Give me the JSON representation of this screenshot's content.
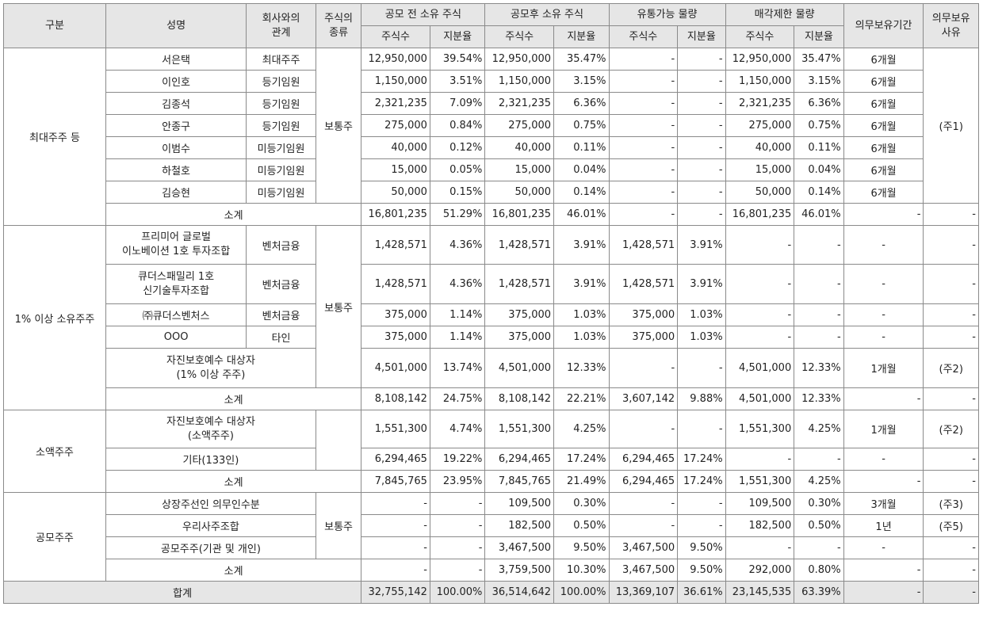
{
  "header": {
    "category": "구분",
    "name": "성명",
    "relation": "회사와의\n관계",
    "stock_type": "주식의\n종류",
    "groups": {
      "pre_ipo": "공모 전 소유 주식",
      "post_ipo": "공모후 소유 주식",
      "tradable": "유통가능 물량",
      "restricted": "매각제한 물량"
    },
    "period": "의무보유기간",
    "reason": "의무보유\n사유",
    "shares": "주식수",
    "ratio": "지분율"
  },
  "sections": [
    {
      "category": "최대주주 등",
      "stock_type": "보통주",
      "reason": "(주1)",
      "rows": [
        {
          "name": "서은택",
          "relation": "최대주주",
          "pre_s": "12,950,000",
          "pre_r": "39.54%",
          "post_s": "12,950,000",
          "post_r": "35.47%",
          "tr_s": "-",
          "tr_r": "-",
          "rs_s": "12,950,000",
          "rs_r": "35.47%",
          "period": "6개월"
        },
        {
          "name": "이인호",
          "relation": "등기임원",
          "pre_s": "1,150,000",
          "pre_r": "3.51%",
          "post_s": "1,150,000",
          "post_r": "3.15%",
          "tr_s": "-",
          "tr_r": "-",
          "rs_s": "1,150,000",
          "rs_r": "3.15%",
          "period": "6개월"
        },
        {
          "name": "김종석",
          "relation": "등기임원",
          "pre_s": "2,321,235",
          "pre_r": "7.09%",
          "post_s": "2,321,235",
          "post_r": "6.36%",
          "tr_s": "-",
          "tr_r": "-",
          "rs_s": "2,321,235",
          "rs_r": "6.36%",
          "period": "6개월"
        },
        {
          "name": "안종구",
          "relation": "등기임원",
          "pre_s": "275,000",
          "pre_r": "0.84%",
          "post_s": "275,000",
          "post_r": "0.75%",
          "tr_s": "-",
          "tr_r": "-",
          "rs_s": "275,000",
          "rs_r": "0.75%",
          "period": "6개월"
        },
        {
          "name": "이범수",
          "relation": "미등기임원",
          "pre_s": "40,000",
          "pre_r": "0.12%",
          "post_s": "40,000",
          "post_r": "0.11%",
          "tr_s": "-",
          "tr_r": "-",
          "rs_s": "40,000",
          "rs_r": "0.11%",
          "period": "6개월"
        },
        {
          "name": "하철호",
          "relation": "미등기임원",
          "pre_s": "15,000",
          "pre_r": "0.05%",
          "post_s": "15,000",
          "post_r": "0.04%",
          "tr_s": "-",
          "tr_r": "-",
          "rs_s": "15,000",
          "rs_r": "0.04%",
          "period": "6개월"
        },
        {
          "name": "김승현",
          "relation": "미등기임원",
          "pre_s": "50,000",
          "pre_r": "0.15%",
          "post_s": "50,000",
          "post_r": "0.14%",
          "tr_s": "-",
          "tr_r": "-",
          "rs_s": "50,000",
          "rs_r": "0.14%",
          "period": "6개월"
        }
      ],
      "subtotal": {
        "label": "소계",
        "pre_s": "16,801,235",
        "pre_r": "51.29%",
        "post_s": "16,801,235",
        "post_r": "46.01%",
        "tr_s": "-",
        "tr_r": "-",
        "rs_s": "16,801,235",
        "rs_r": "46.01%",
        "period": "-",
        "reason": "-"
      }
    },
    {
      "category": "1% 이상 소유주주",
      "stock_type": "보통주",
      "rows": [
        {
          "name": "프리미어 글로벌\n이노베이션 1호 투자조합",
          "relation": "벤처금융",
          "pre_s": "1,428,571",
          "pre_r": "4.36%",
          "post_s": "1,428,571",
          "post_r": "3.91%",
          "tr_s": "1,428,571",
          "tr_r": "3.91%",
          "rs_s": "-",
          "rs_r": "-",
          "period": "-",
          "reason": "-"
        },
        {
          "name": "큐더스패밀리 1호\n신기술투자조합",
          "relation": "벤처금융",
          "pre_s": "1,428,571",
          "pre_r": "4.36%",
          "post_s": "1,428,571",
          "post_r": "3.91%",
          "tr_s": "1,428,571",
          "tr_r": "3.91%",
          "rs_s": "-",
          "rs_r": "-",
          "period": "-",
          "reason": "-"
        },
        {
          "name": "㈜큐더스벤처스",
          "relation": "벤처금융",
          "pre_s": "375,000",
          "pre_r": "1.14%",
          "post_s": "375,000",
          "post_r": "1.03%",
          "tr_s": "375,000",
          "tr_r": "1.03%",
          "rs_s": "-",
          "rs_r": "-",
          "period": "-",
          "reason": "-"
        },
        {
          "name": "OOO",
          "relation": "타인",
          "pre_s": "375,000",
          "pre_r": "1.14%",
          "post_s": "375,000",
          "post_r": "1.03%",
          "tr_s": "375,000",
          "tr_r": "1.03%",
          "rs_s": "-",
          "rs_r": "-",
          "period": "-",
          "reason": "-"
        },
        {
          "name": "자진보호예수 대상자\n(1% 이상 주주)",
          "relation": "",
          "pre_s": "4,501,000",
          "pre_r": "13.74%",
          "post_s": "4,501,000",
          "post_r": "12.33%",
          "tr_s": "-",
          "tr_r": "-",
          "rs_s": "4,501,000",
          "rs_r": "12.33%",
          "period": "1개월",
          "reason": "(주2)"
        }
      ],
      "subtotal": {
        "label": "소계",
        "pre_s": "8,108,142",
        "pre_r": "24.75%",
        "post_s": "8,108,142",
        "post_r": "22.21%",
        "tr_s": "3,607,142",
        "tr_r": "9.88%",
        "rs_s": "4,501,000",
        "rs_r": "12.33%",
        "period": "-",
        "reason": "-"
      }
    },
    {
      "category": "소액주주",
      "rows": [
        {
          "name": "자진보호예수 대상자\n(소액주주)",
          "pre_s": "1,551,300",
          "pre_r": "4.74%",
          "post_s": "1,551,300",
          "post_r": "4.25%",
          "tr_s": "-",
          "tr_r": "-",
          "rs_s": "1,551,300",
          "rs_r": "4.25%",
          "period": "1개월",
          "reason": "(주2)"
        },
        {
          "name": "기타(133인)",
          "pre_s": "6,294,465",
          "pre_r": "19.22%",
          "post_s": "6,294,465",
          "post_r": "17.24%",
          "tr_s": "6,294,465",
          "tr_r": "17.24%",
          "rs_s": "-",
          "rs_r": "-",
          "period": "-",
          "reason": "-"
        }
      ],
      "subtotal": {
        "label": "소계",
        "pre_s": "7,845,765",
        "pre_r": "23.95%",
        "post_s": "7,845,765",
        "post_r": "21.49%",
        "tr_s": "6,294,465",
        "tr_r": "17.24%",
        "rs_s": "1,551,300",
        "rs_r": "4.25%",
        "period": "-",
        "reason": "-"
      }
    },
    {
      "category": "공모주주",
      "stock_type": "보통주",
      "rows": [
        {
          "name": "상장주선인 의무인수분",
          "pre_s": "-",
          "pre_r": "-",
          "post_s": "109,500",
          "post_r": "0.30%",
          "tr_s": "-",
          "tr_r": "-",
          "rs_s": "109,500",
          "rs_r": "0.30%",
          "period": "3개월",
          "reason": "(주3)"
        },
        {
          "name": "우리사주조합",
          "pre_s": "-",
          "pre_r": "-",
          "post_s": "182,500",
          "post_r": "0.50%",
          "tr_s": "-",
          "tr_r": "-",
          "rs_s": "182,500",
          "rs_r": "0.50%",
          "period": "1년",
          "reason": "(주5)"
        },
        {
          "name": "공모주주(기관 및 개인)",
          "pre_s": "-",
          "pre_r": "-",
          "post_s": "3,467,500",
          "post_r": "9.50%",
          "tr_s": "3,467,500",
          "tr_r": "9.50%",
          "rs_s": "-",
          "rs_r": "-",
          "period": "-",
          "reason": "-"
        }
      ],
      "subtotal": {
        "label": "소계",
        "pre_s": "-",
        "pre_r": "-",
        "post_s": "3,759,500",
        "post_r": "10.30%",
        "tr_s": "3,467,500",
        "tr_r": "9.50%",
        "rs_s": "292,000",
        "rs_r": "0.80%",
        "period": "-",
        "reason": "-"
      }
    }
  ],
  "total": {
    "label": "합계",
    "pre_s": "32,755,142",
    "pre_r": "100.00%",
    "post_s": "36,514,642",
    "post_r": "100.00%",
    "tr_s": "13,369,107",
    "tr_r": "36.61%",
    "rs_s": "23,145,535",
    "rs_r": "63.39%",
    "period": "-",
    "reason": "-"
  }
}
